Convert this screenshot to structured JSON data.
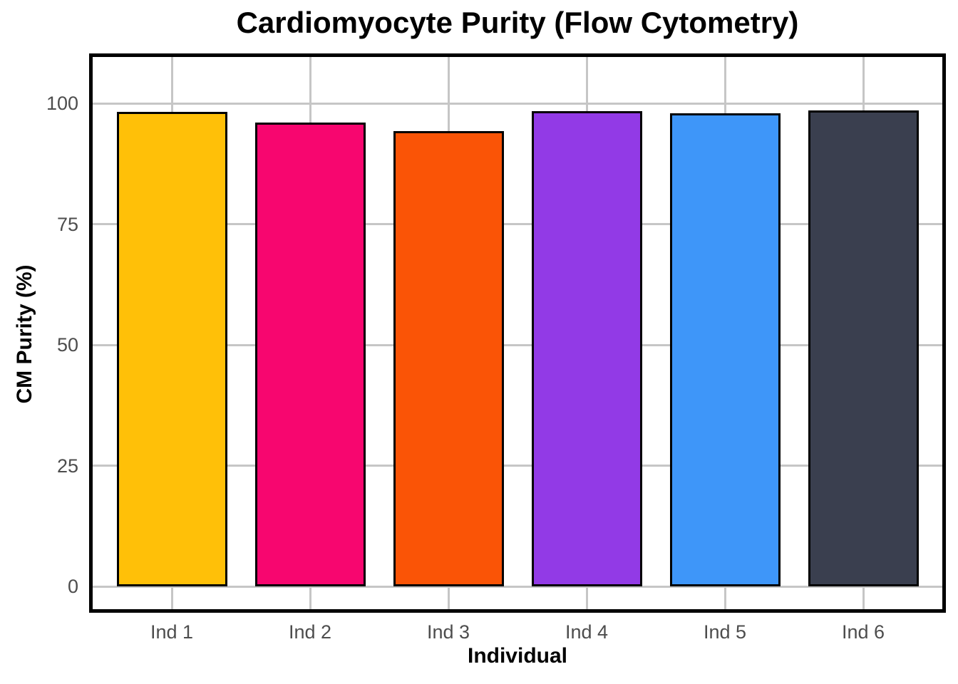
{
  "chart_data": {
    "type": "bar",
    "title": "Cardiomyocyte Purity (Flow Cytometry)",
    "xlabel": "Individual",
    "ylabel": "CM Purity (%)",
    "categories": [
      "Ind 1",
      "Ind 2",
      "Ind 3",
      "Ind 4",
      "Ind 5",
      "Ind 6"
    ],
    "values": [
      98.2,
      96.0,
      94.2,
      98.4,
      98.0,
      98.6
    ],
    "bar_colors": [
      "#FFC008",
      "#F7066F",
      "#FA5406",
      "#923AE6",
      "#3E96F9",
      "#3A3F4F"
    ],
    "bar_edge_color": "#000000",
    "yticks": [
      0,
      25,
      50,
      75,
      100
    ],
    "ytick_labels": [
      "0",
      "25",
      "50",
      "75",
      "100"
    ],
    "ylim": [
      -4.7,
      109.6
    ],
    "grid": true,
    "grid_color": "#C6C6C6",
    "axis_text_color": "#4D4D4D",
    "panel_border_color": "#000000",
    "background": "#FFFFFF",
    "legend": "none"
  }
}
